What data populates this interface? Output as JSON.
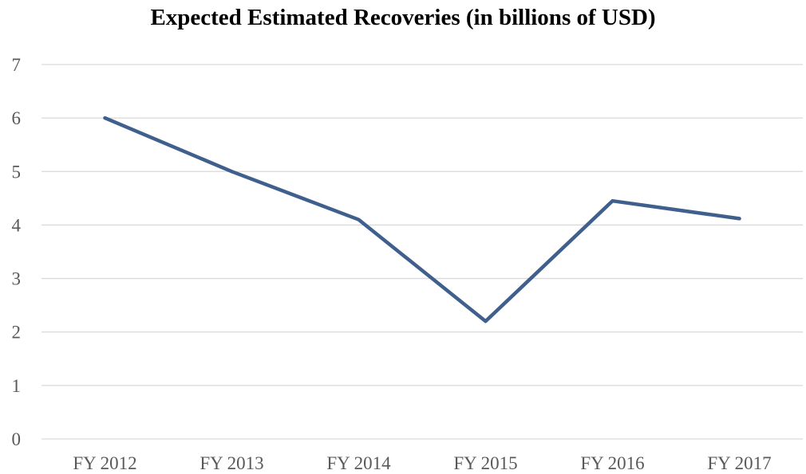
{
  "chart_data": {
    "type": "line",
    "title": "Expected Estimated Recoveries (in billions of USD)",
    "xlabel": "",
    "ylabel": "",
    "categories": [
      "FY 2012",
      "FY 2013",
      "FY 2014",
      "FY 2015",
      "FY 2016",
      "FY 2017"
    ],
    "series": [
      {
        "values": [
          6.0,
          5.0,
          4.1,
          2.2,
          4.45,
          4.12
        ]
      }
    ],
    "ylim": [
      0,
      7
    ],
    "yticks": [
      0,
      1,
      2,
      3,
      4,
      5,
      6,
      7
    ],
    "grid": true,
    "legend": "none",
    "colors": {
      "line": "#3f5f8c",
      "grid": "#d9d9d9",
      "axis": "#d9d9d9",
      "tick_text": "#595959"
    }
  }
}
